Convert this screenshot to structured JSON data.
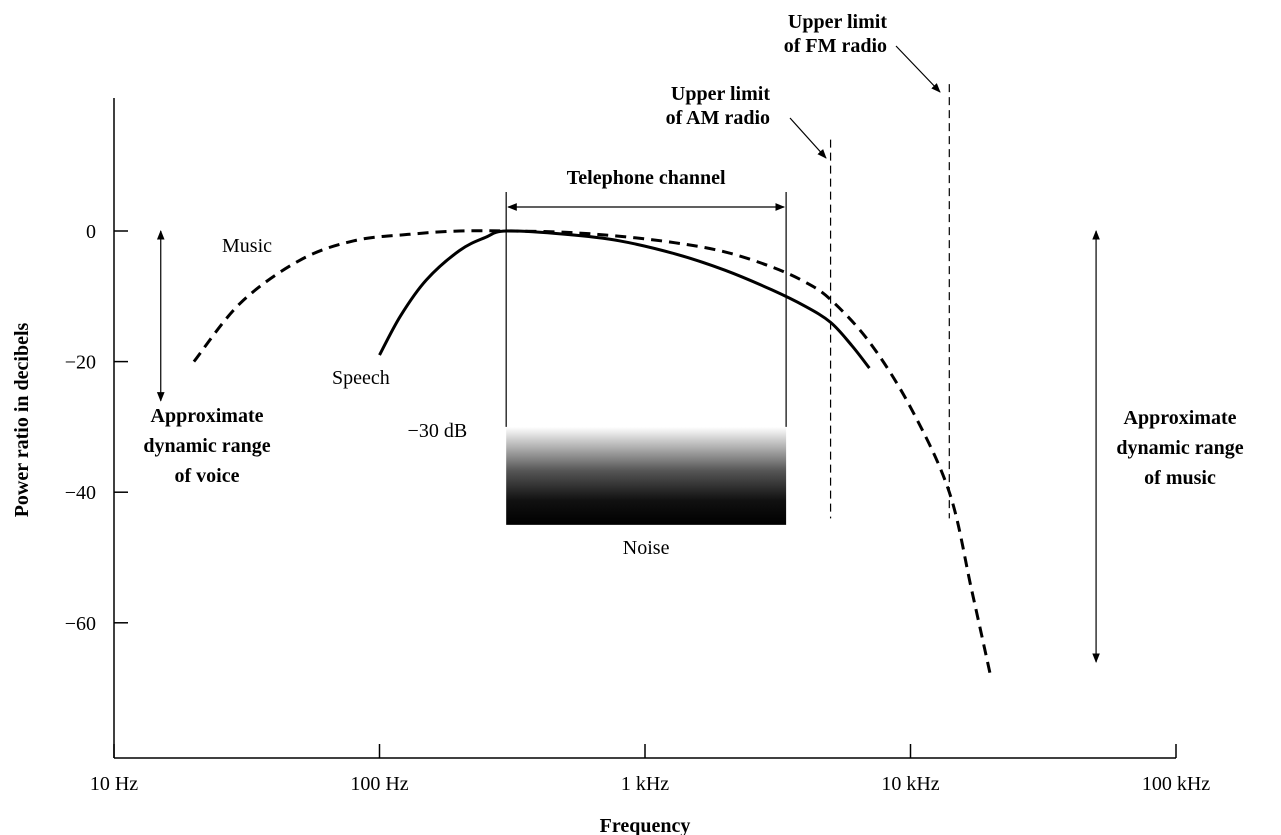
{
  "chart_data": {
    "type": "line",
    "xlabel": "Frequency",
    "ylabel": "Power ratio in decibels",
    "x_scale": "log",
    "xlim_hz": [
      10,
      100000
    ],
    "ylim_db": [
      -80,
      18
    ],
    "x_ticks": [
      {
        "value": 10,
        "label": "10 Hz"
      },
      {
        "value": 100,
        "label": "100 Hz"
      },
      {
        "value": 1000,
        "label": "1 kHz"
      },
      {
        "value": 10000,
        "label": "10 kHz"
      },
      {
        "value": 100000,
        "label": "100 kHz"
      }
    ],
    "y_ticks": [
      {
        "value": 0,
        "label": "0"
      },
      {
        "value": -20,
        "label": "−20"
      },
      {
        "value": -40,
        "label": "−40"
      },
      {
        "value": -60,
        "label": "−60"
      }
    ],
    "series": [
      {
        "name": "Music",
        "style": "dashed",
        "x": [
          20,
          30,
          50,
          80,
          130,
          200,
          300,
          500,
          800,
          1300,
          2000,
          3000,
          4000,
          5000,
          7000,
          10000,
          14000,
          17000,
          20000
        ],
        "y": [
          -20,
          -11,
          -4.5,
          -1.5,
          -0.5,
          0,
          0,
          -0.2,
          -0.8,
          -1.8,
          -3.2,
          -5.5,
          -7.8,
          -10.5,
          -17,
          -27,
          -40,
          -55,
          -68
        ]
      },
      {
        "name": "Speech",
        "style": "solid",
        "x": [
          100,
          120,
          150,
          200,
          250,
          300,
          500,
          800,
          1300,
          2000,
          3000,
          4000,
          5000,
          6000,
          7000
        ],
        "y": [
          -19,
          -13,
          -7.5,
          -3,
          -1,
          0,
          -0.5,
          -1.5,
          -3.5,
          -6,
          -9,
          -11.5,
          -14,
          -17.5,
          -21
        ]
      }
    ],
    "telephone_channel": {
      "label": "Telephone channel",
      "x_range_hz": [
        300,
        3400
      ]
    },
    "noise": {
      "label": "Noise",
      "level_label": "−30 dB",
      "x_range_hz": [
        300,
        3400
      ],
      "y_range_db": [
        -30,
        -45
      ]
    },
    "limits": [
      {
        "label_line1": "Upper limit",
        "label_line2": "of AM radio",
        "x_hz": 5000,
        "y_range_db": [
          -44,
          14
        ]
      },
      {
        "label_line1": "Upper limit",
        "label_line2": "of FM radio",
        "x_hz": 14000,
        "y_range_db": [
          -44,
          22.5
        ]
      }
    ],
    "ranges": [
      {
        "line1": "Approximate",
        "line2": "dynamic range",
        "line3": "of voice",
        "x_hz": 15,
        "y_range_db": [
          0,
          -26
        ]
      },
      {
        "line1": "Approximate",
        "line2": "dynamic range",
        "line3": "of music",
        "x_hz": 50000,
        "y_range_db": [
          0,
          -66
        ]
      }
    ]
  }
}
